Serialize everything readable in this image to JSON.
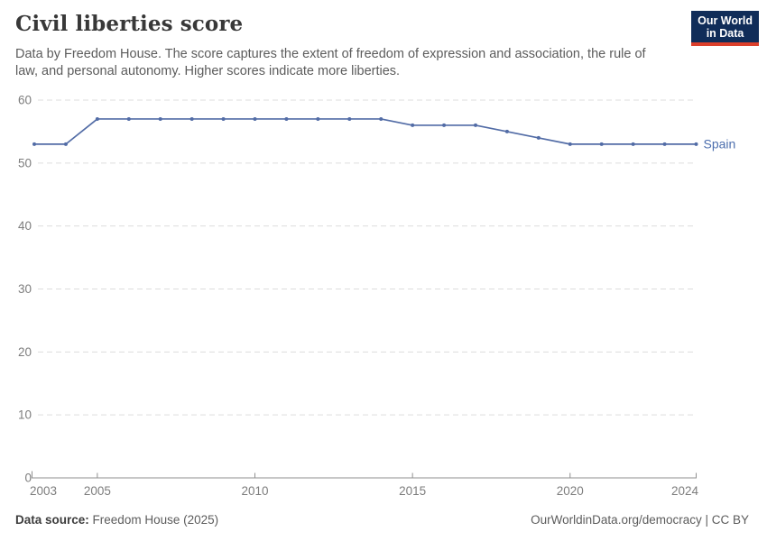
{
  "header": {
    "title": "Civil liberties score",
    "subtitle": "Data by Freedom House. The score captures the extent of freedom of expression and association, the rule of law, and personal autonomy. Higher scores indicate more liberties.",
    "logo": {
      "line1": "Our World",
      "line2": "in Data"
    }
  },
  "chart_data": {
    "type": "line",
    "title": "Civil liberties score",
    "x": [
      2003,
      2004,
      2005,
      2006,
      2007,
      2008,
      2009,
      2010,
      2011,
      2012,
      2013,
      2014,
      2015,
      2016,
      2017,
      2018,
      2019,
      2020,
      2021,
      2022,
      2023,
      2024
    ],
    "series": [
      {
        "name": "Spain",
        "color": "#526ca6",
        "values": [
          53,
          53,
          57,
          57,
          57,
          57,
          57,
          57,
          57,
          57,
          57,
          57,
          56,
          56,
          56,
          55,
          54,
          53,
          53,
          53,
          53,
          53
        ]
      }
    ],
    "xlabel": "",
    "ylabel": "",
    "xlim": [
      2003,
      2024
    ],
    "ylim": [
      0,
      60
    ],
    "xticks": [
      2003,
      2005,
      2010,
      2015,
      2020,
      2024
    ],
    "yticks": [
      0,
      10,
      20,
      30,
      40,
      50,
      60
    ],
    "grid": "horizontal-dashed",
    "legend_position": "end-of-line-label",
    "end_label": "Spain"
  },
  "footer": {
    "datasource_label": "Data source:",
    "datasource_value": "Freedom House (2025)",
    "right_text": "OurWorldinData.org/democracy | CC BY"
  },
  "colors": {
    "line": "#526ca6",
    "entity_label": "#4d6fae",
    "grid": "#dddddd",
    "axis": "#8f8f8f",
    "tick_label": "#7d7d7d",
    "logo_bg": "#102d59",
    "logo_red": "#dc3f2b"
  }
}
